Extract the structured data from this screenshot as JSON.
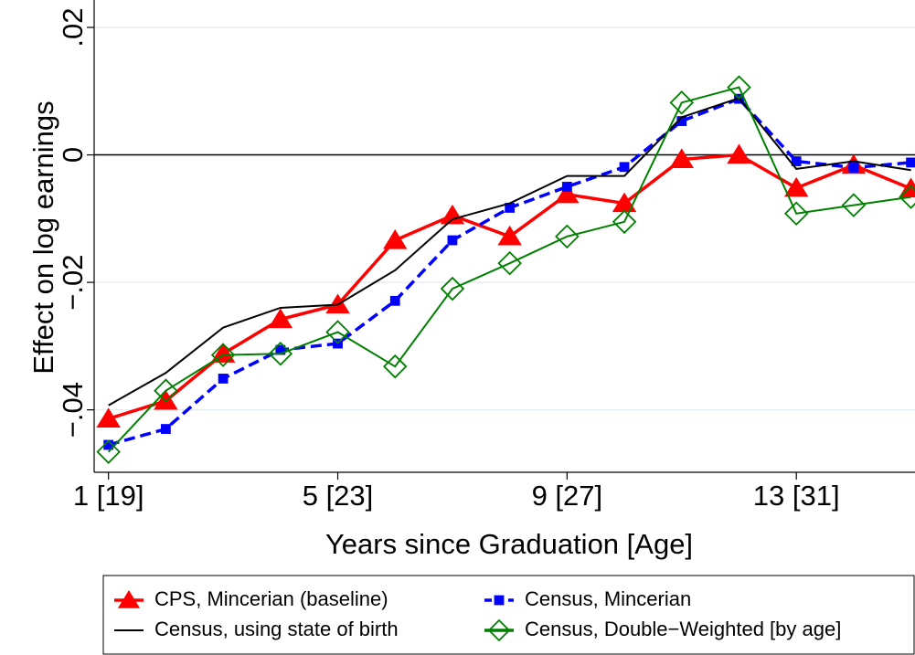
{
  "chart_data": {
    "type": "line",
    "y_label": "Effect on log earnings",
    "x_label": "Years since Graduation [Age]",
    "x": [
      1,
      2,
      3,
      4,
      5,
      6,
      7,
      8,
      9,
      10,
      11,
      12,
      13,
      14,
      15
    ],
    "xlim": [
      0.75,
      15.07
    ],
    "xticks": [
      {
        "value": 1,
        "label": "1 [19]"
      },
      {
        "value": 5,
        "label": "5 [23]"
      },
      {
        "value": 9,
        "label": "9 [27]"
      },
      {
        "value": 13,
        "label": "13 [31]"
      }
    ],
    "ylim": [
      -0.0498,
      0.0243
    ],
    "yticks": [
      {
        "value": 0.02,
        "label": ".02"
      },
      0,
      {
        "value": -0.02,
        "label": "−.02"
      },
      {
        "value": -0.04,
        "label": "−.04"
      }
    ],
    "grid": true,
    "reference_line": 0,
    "legend": "bottom",
    "series": [
      {
        "name": "CPS, Mincerian (baseline)",
        "color": "#ff0000",
        "marker": "triangle",
        "dash": "solid",
        "values": [
          -0.0414,
          -0.0386,
          -0.0312,
          -0.0258,
          -0.0235,
          -0.0134,
          -0.0095,
          -0.0128,
          -0.0062,
          -0.0076,
          -0.0007,
          0,
          -0.0052,
          -0.0016,
          -0.0053
        ]
      },
      {
        "name": "Census, Mincerian",
        "color": "#0000ff",
        "marker": "square",
        "dash": "dashed",
        "values": [
          -0.0455,
          -0.043,
          -0.0351,
          -0.0306,
          -0.0296,
          -0.0229,
          -0.0134,
          -0.0083,
          -0.005,
          -0.0019,
          0.0053,
          0.0088,
          -0.001,
          -0.002,
          -0.0012
        ]
      },
      {
        "name": "Census, using state of birth",
        "color": "#000000",
        "marker": "none",
        "dash": "solid",
        "values": [
          -0.0393,
          -0.0342,
          -0.0271,
          -0.024,
          -0.0235,
          -0.0181,
          -0.0101,
          -0.0076,
          -0.0033,
          -0.0033,
          0.0059,
          0.0089,
          -0.0022,
          -0.001,
          -0.0024
        ]
      },
      {
        "name": "Census, Double−Weighted [by age]",
        "color": "#008000",
        "marker": "diamond-hollow",
        "dash": "solid",
        "values": [
          -0.0466,
          -0.037,
          -0.0314,
          -0.0312,
          -0.0278,
          -0.0332,
          -0.021,
          -0.017,
          -0.0128,
          -0.0105,
          0.0082,
          0.0106,
          -0.0092,
          -0.0079,
          -0.0066
        ]
      }
    ]
  }
}
